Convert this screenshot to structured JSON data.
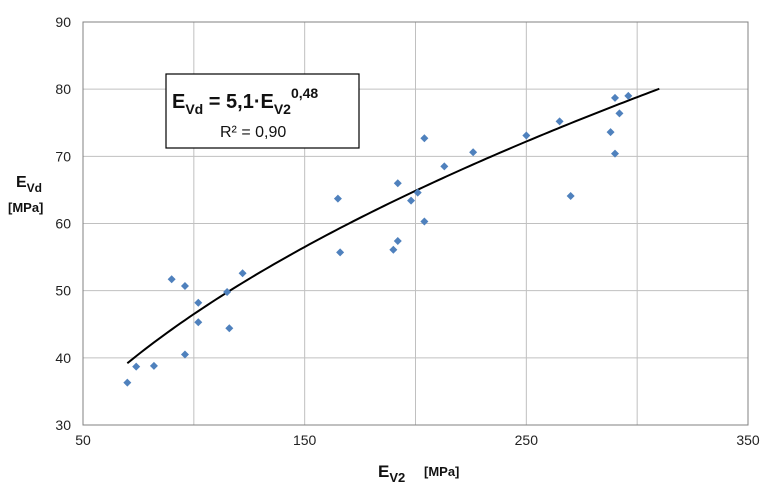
{
  "chart_data": {
    "type": "scatter",
    "xlim": [
      50,
      350
    ],
    "ylim": [
      30,
      90
    ],
    "x_ticks": [
      50,
      150,
      250,
      350
    ],
    "y_ticks": [
      30,
      40,
      50,
      60,
      70,
      80,
      90
    ],
    "grid": true,
    "xlabel": {
      "main": "E",
      "sub": "V2",
      "unit": "[MPa]"
    },
    "ylabel": {
      "main": "E",
      "sub": "Vd",
      "unit": "[MPa]"
    },
    "annotation": {
      "equation_lhs": "E",
      "equation_lhs_sub": "Vd",
      "equation_mid": " = 5,1·E",
      "equation_rhs_sub": "V2",
      "equation_exp": "0,48",
      "r2_text": "R² = 0,90"
    },
    "marker_color": "#4f81bd",
    "trendline": {
      "type": "power",
      "a": 5.1,
      "b": 0.48,
      "x_range": [
        70,
        310
      ],
      "color": "#000000"
    },
    "points": [
      {
        "x": 70,
        "y": 36.3
      },
      {
        "x": 74,
        "y": 38.7
      },
      {
        "x": 82,
        "y": 38.8
      },
      {
        "x": 90,
        "y": 51.7
      },
      {
        "x": 96,
        "y": 50.7
      },
      {
        "x": 96,
        "y": 40.5
      },
      {
        "x": 102,
        "y": 48.2
      },
      {
        "x": 102,
        "y": 45.3
      },
      {
        "x": 115,
        "y": 49.8
      },
      {
        "x": 116,
        "y": 44.4
      },
      {
        "x": 122,
        "y": 52.6
      },
      {
        "x": 165,
        "y": 63.7
      },
      {
        "x": 166,
        "y": 55.7
      },
      {
        "x": 190,
        "y": 56.1
      },
      {
        "x": 192,
        "y": 57.4
      },
      {
        "x": 192,
        "y": 66.0
      },
      {
        "x": 198,
        "y": 63.4
      },
      {
        "x": 201,
        "y": 64.6
      },
      {
        "x": 204,
        "y": 60.3
      },
      {
        "x": 204,
        "y": 72.7
      },
      {
        "x": 213,
        "y": 68.5
      },
      {
        "x": 226,
        "y": 70.6
      },
      {
        "x": 250,
        "y": 73.1
      },
      {
        "x": 265,
        "y": 75.2
      },
      {
        "x": 270,
        "y": 64.1
      },
      {
        "x": 288,
        "y": 73.6
      },
      {
        "x": 290,
        "y": 78.7
      },
      {
        "x": 290,
        "y": 70.4
      },
      {
        "x": 292,
        "y": 76.4
      },
      {
        "x": 296,
        "y": 79.0
      }
    ]
  }
}
